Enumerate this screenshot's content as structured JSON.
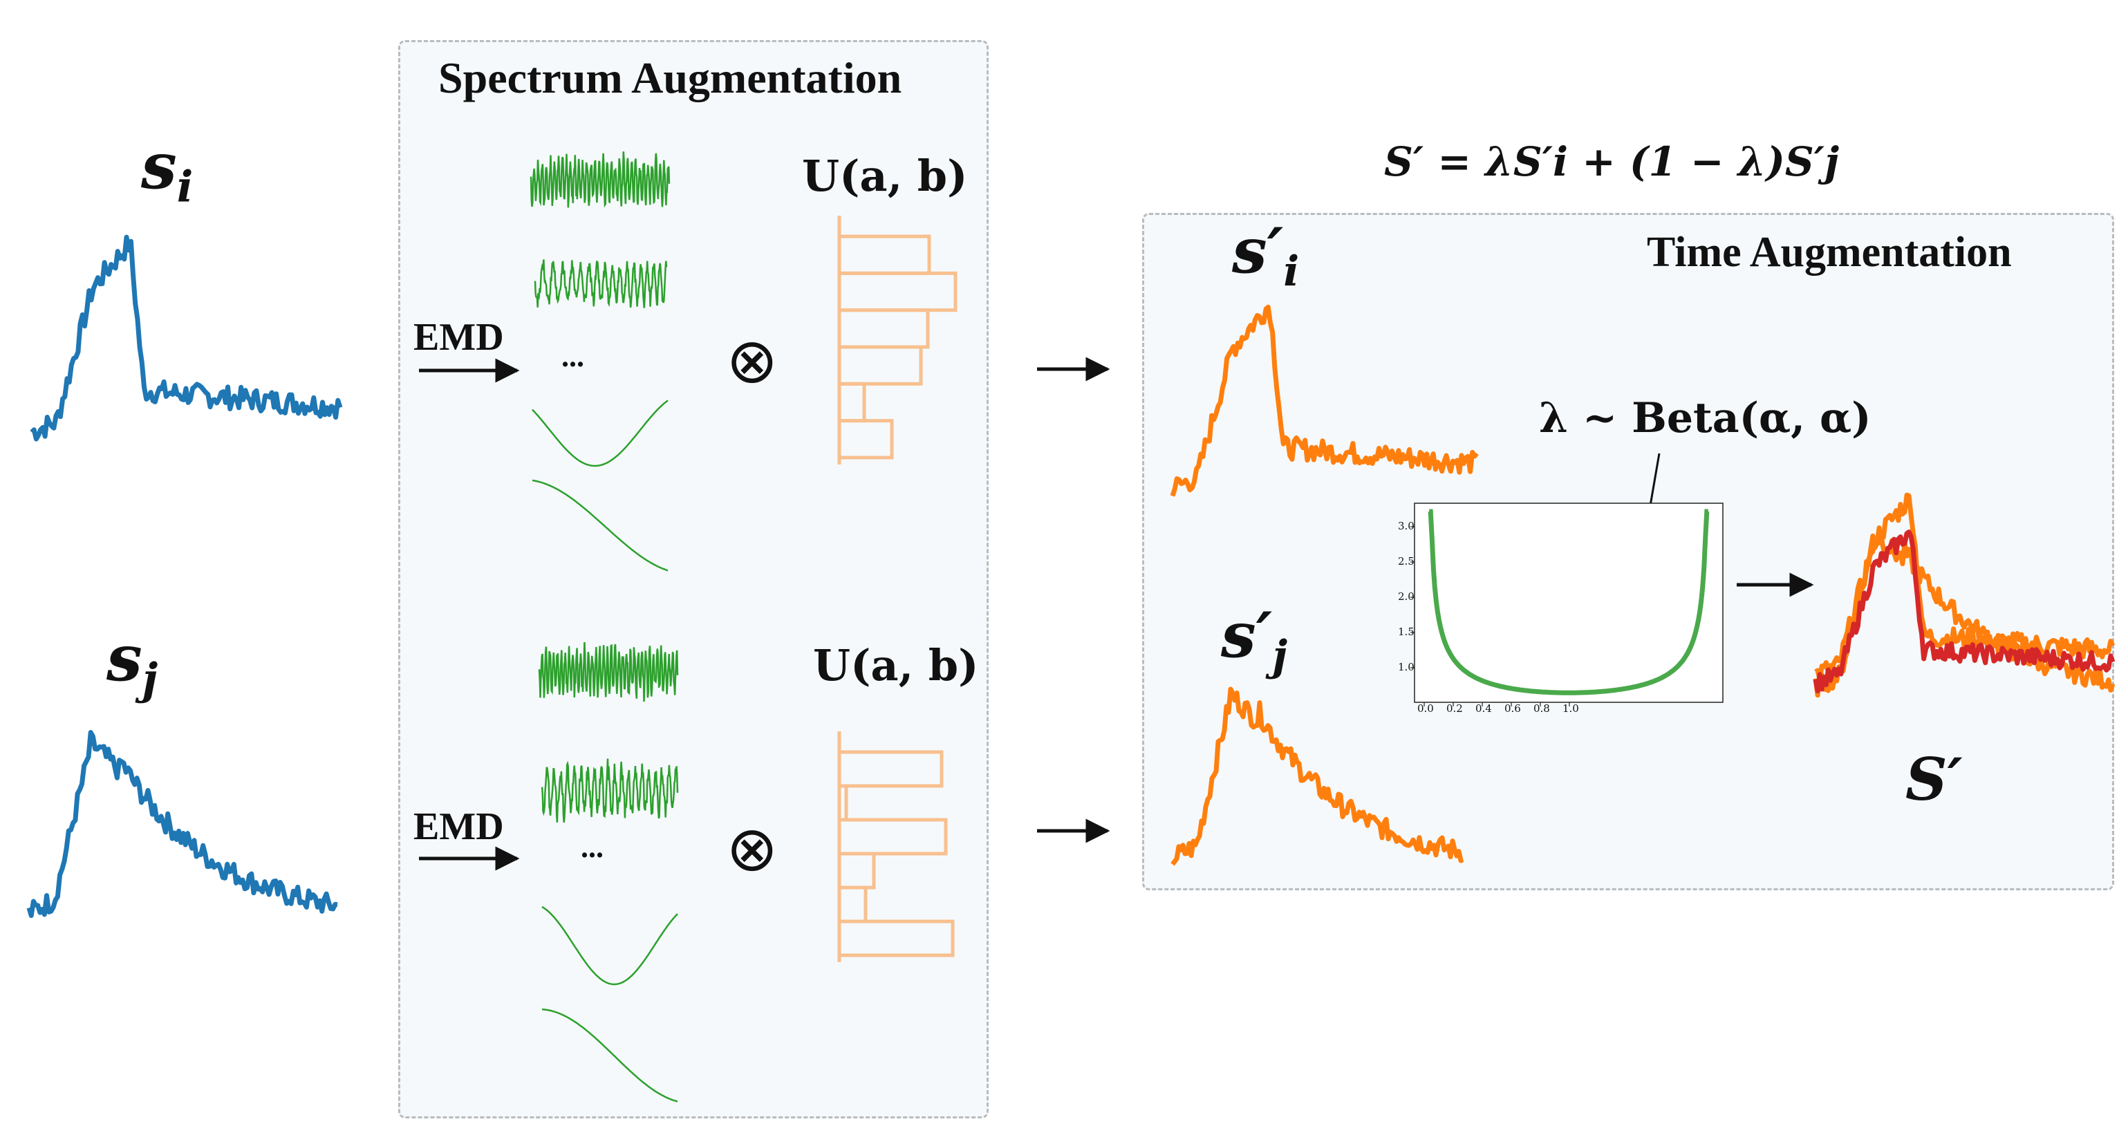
{
  "spectrum": {
    "title": "Spectrum Augmentation",
    "emd_label": "EMD",
    "ellipsis": "...",
    "tensor_symbol": "⊗",
    "uniform_label": "U(a, b)"
  },
  "time": {
    "title": "Time Augmentation",
    "lambda_label": "λ ~ Beta(α, α)"
  },
  "formula": "S′ = λS′i + (1 − λ)S′j",
  "signals": {
    "si_label": "s",
    "si_sub": "i",
    "sj_label": "s",
    "sj_sub": "j",
    "si_aug_label": "s",
    "si_aug_sub": "i",
    "sj_aug_label": "s",
    "sj_aug_sub": "j",
    "prime": "′",
    "mixed_label": "S′"
  },
  "beta_plot": {
    "yticks": [
      "3.0",
      "2.5",
      "2.0",
      "1.5",
      "1.0"
    ],
    "xticks": [
      "0.0",
      "0.2",
      "0.4",
      "0.6",
      "0.8",
      "1.0"
    ]
  },
  "colors": {
    "raw": "#1f77b4",
    "augmented": "#ff7f0e",
    "mixed": "#d62728",
    "imf": "#2ca02c",
    "hist": "#f8c08f",
    "beta": "#2a9a2a"
  }
}
